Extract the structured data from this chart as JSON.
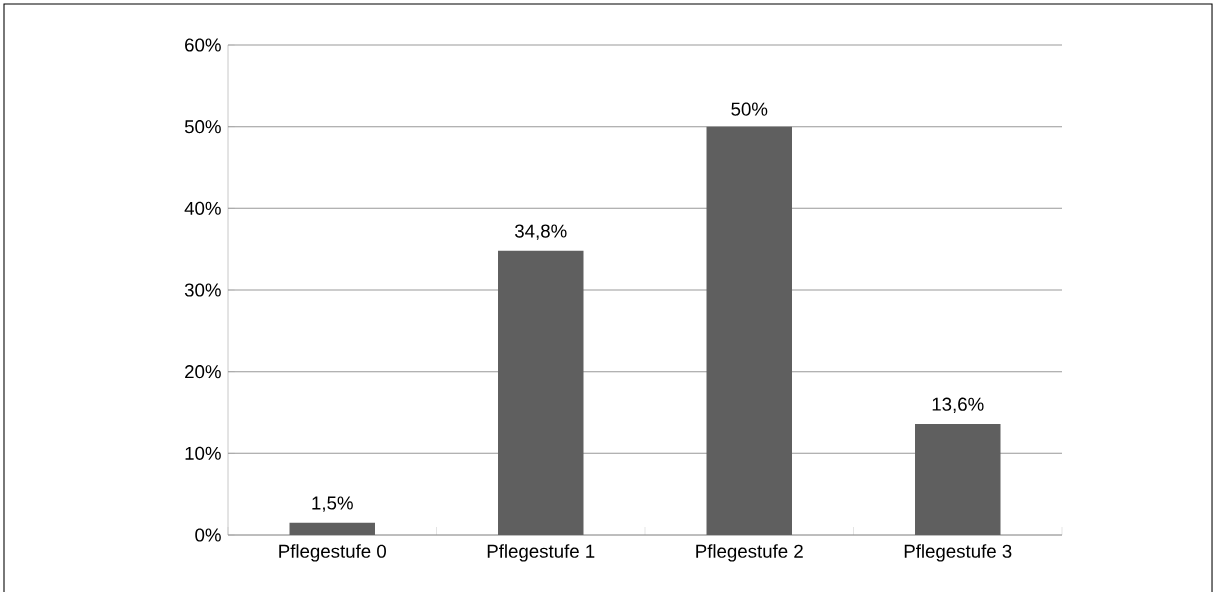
{
  "chart_data": {
    "type": "bar",
    "categories": [
      "Pflegestufe 0",
      "Pflegestufe 1",
      "Pflegestufe 2",
      "Pflegestufe 3"
    ],
    "values": [
      1.5,
      34.8,
      50,
      13.6
    ],
    "value_labels": [
      "1,5%",
      "34,8%",
      "50%",
      "13,6%"
    ],
    "color": "#5f5f5f",
    "ylim": [
      0,
      60
    ],
    "yticks": [
      {
        "value": 0,
        "label": "0%"
      },
      {
        "value": 10,
        "label": "10%"
      },
      {
        "value": 20,
        "label": "20%"
      },
      {
        "value": 30,
        "label": "30%"
      },
      {
        "value": 40,
        "label": "40%"
      },
      {
        "value": 50,
        "label": "50%"
      },
      {
        "value": 60,
        "label": "60%"
      }
    ],
    "grid": "y"
  }
}
